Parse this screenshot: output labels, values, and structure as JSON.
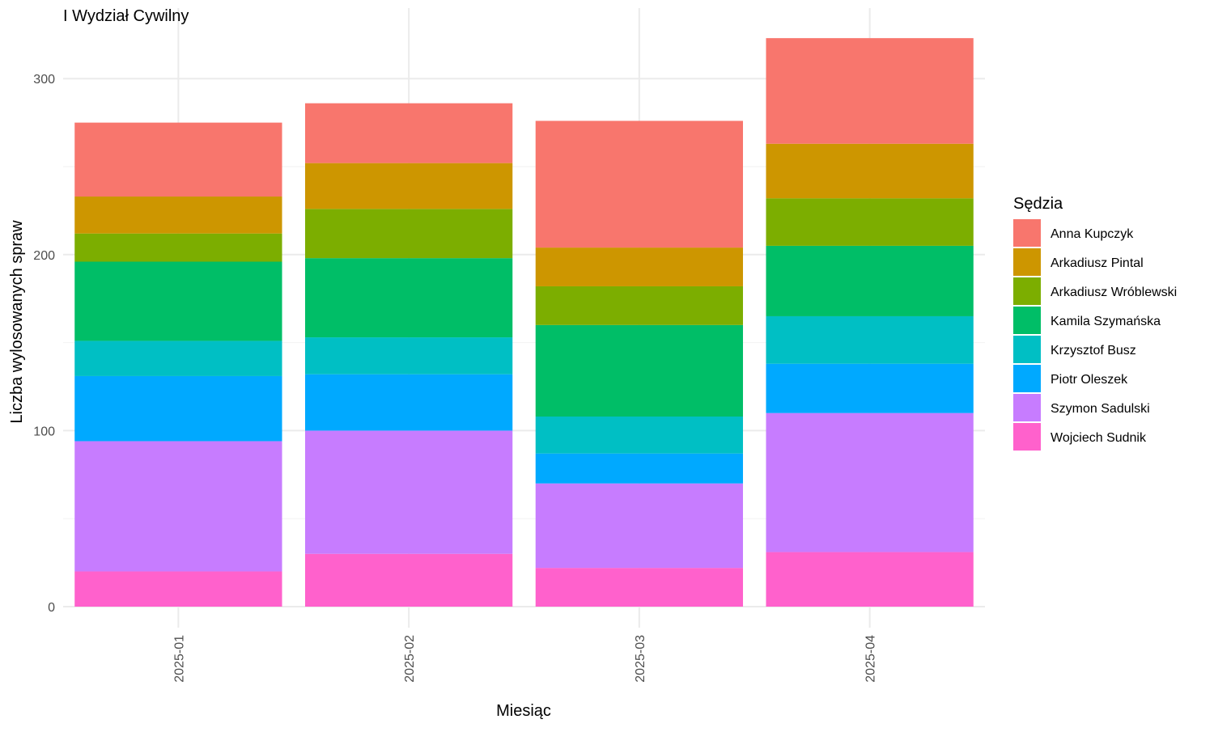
{
  "chart_data": {
    "type": "bar",
    "stacked": true,
    "title": "I Wydział Cywilny",
    "xlabel": "Miesiąc",
    "ylabel": "Liczba wylosowanych spraw",
    "ylim": [
      0,
      330
    ],
    "yticks": [
      0,
      100,
      200,
      300
    ],
    "grid": true,
    "legend_title": "Sędzia",
    "legend_position": "right",
    "categories": [
      "2025-01",
      "2025-02",
      "2025-03",
      "2025-04"
    ],
    "series": [
      {
        "name": "Anna Kupczyk",
        "color": "#F8766D",
        "values": [
          42,
          34,
          72,
          60
        ]
      },
      {
        "name": "Arkadiusz Pintal",
        "color": "#CD9600",
        "values": [
          21,
          26,
          22,
          31
        ]
      },
      {
        "name": "Arkadiusz Wróblewski",
        "color": "#7CAE00",
        "values": [
          16,
          28,
          22,
          27
        ]
      },
      {
        "name": "Kamila Szymańska",
        "color": "#00BE67",
        "values": [
          45,
          45,
          52,
          40
        ]
      },
      {
        "name": "Krzysztof Busz",
        "color": "#00BFC4",
        "values": [
          20,
          21,
          21,
          27
        ]
      },
      {
        "name": "Piotr Oleszek",
        "color": "#00A9FF",
        "values": [
          37,
          32,
          17,
          28
        ]
      },
      {
        "name": "Szymon Sadulski",
        "color": "#C77CFF",
        "values": [
          74,
          70,
          48,
          79
        ]
      },
      {
        "name": "Wojciech Sudnik",
        "color": "#FF61CC",
        "values": [
          20,
          30,
          22,
          31
        ]
      }
    ]
  }
}
